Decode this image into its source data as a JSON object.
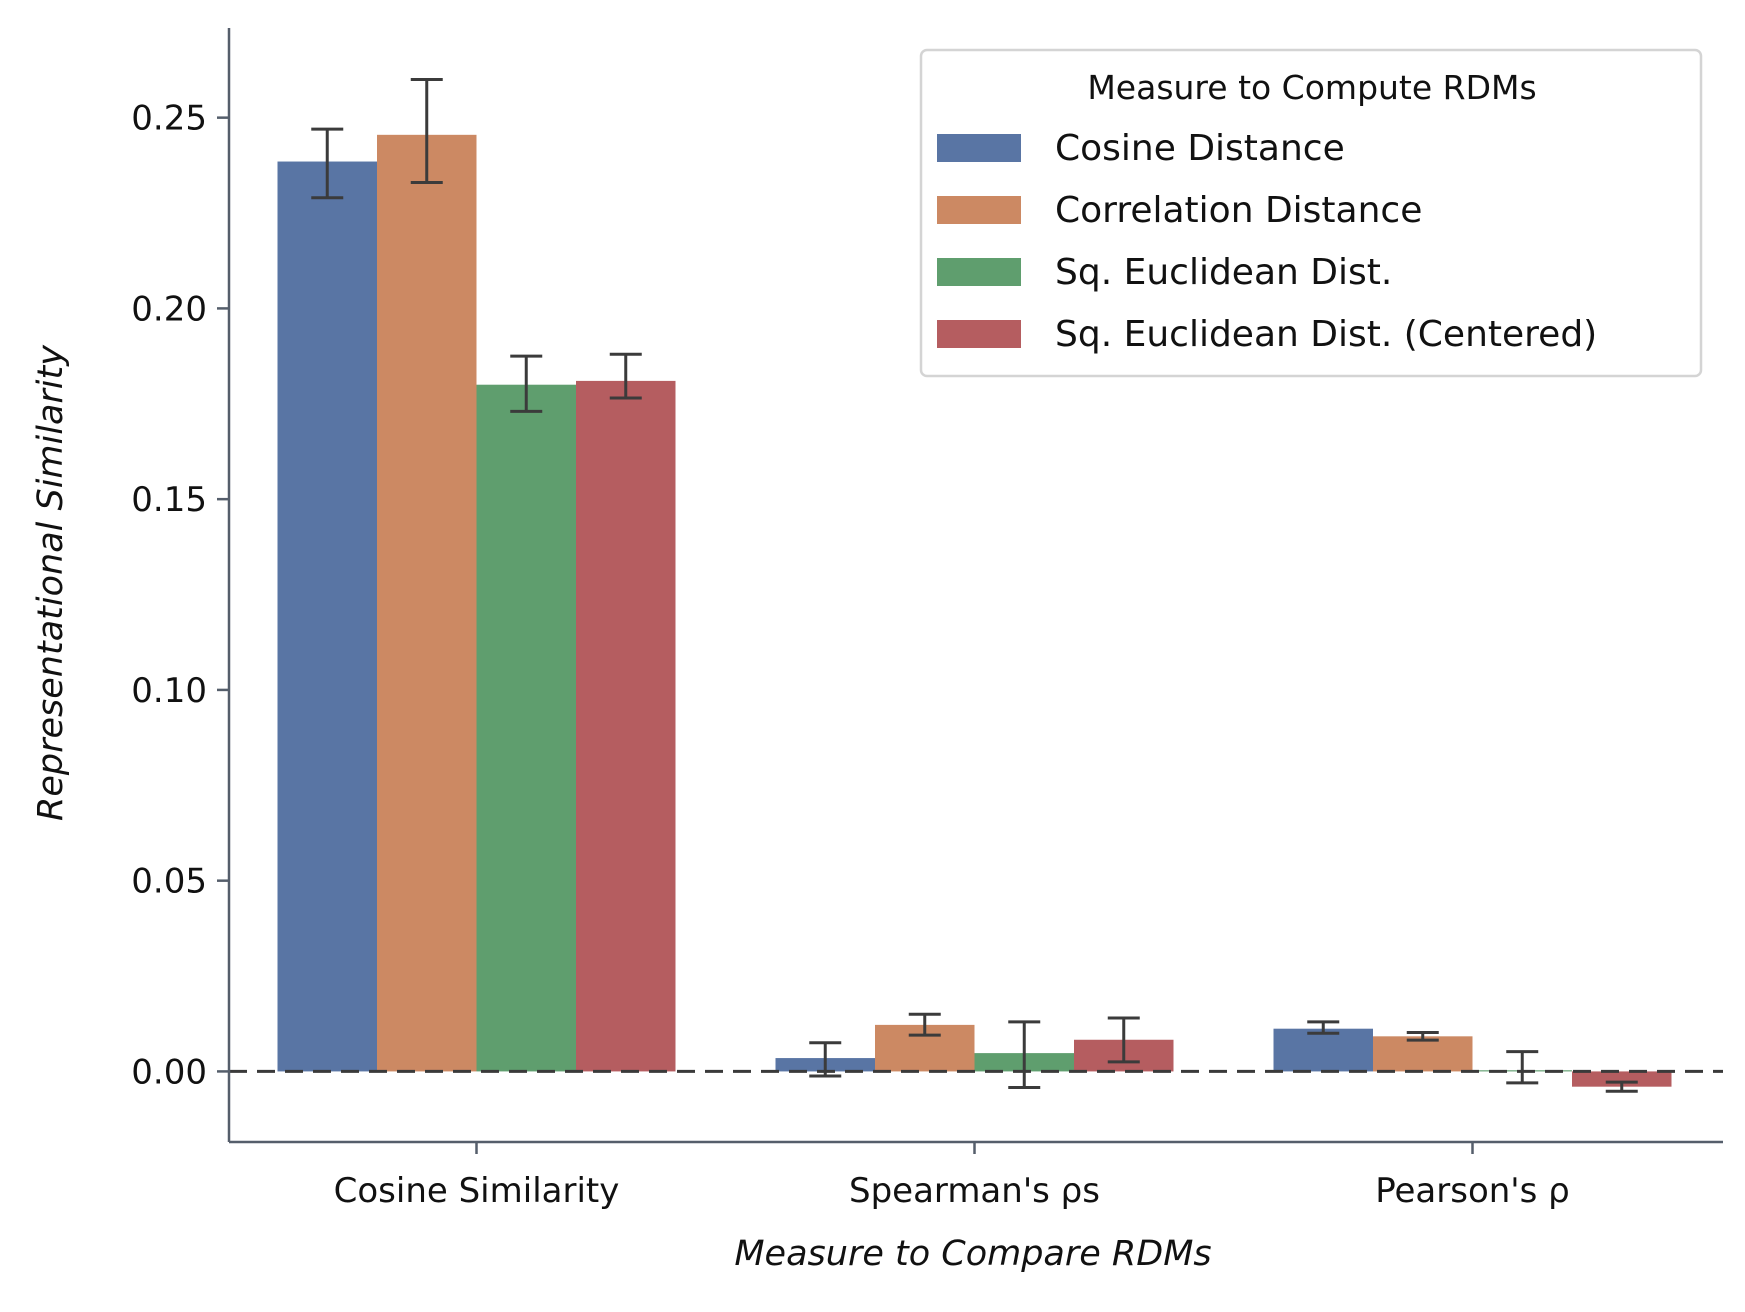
{
  "chart_data": {
    "type": "bar",
    "xlabel": "Measure to Compare RDMs",
    "ylabel": "Representational Similarity",
    "categories": [
      "Cosine Similarity",
      "Spearman's ρs",
      "Pearson's ρ"
    ],
    "ylim": [
      -0.0185,
      0.2735
    ],
    "yticks": [
      "0.00",
      "0.05",
      "0.10",
      "0.15",
      "0.20",
      "0.25"
    ],
    "ytick_values": [
      0.0,
      0.05,
      0.1,
      0.15,
      0.2,
      0.25
    ],
    "reference_line": 0.0,
    "grid": false,
    "legend": {
      "title": "Measure to Compute RDMs",
      "placement": "top-right"
    },
    "series": [
      {
        "name": "Cosine Distance",
        "color": "#5975a4",
        "values": [
          0.2385,
          0.0035,
          0.0112
        ],
        "err_low": [
          0.229,
          -0.0012,
          0.01
        ],
        "err_high": [
          0.247,
          0.0075,
          0.013
        ]
      },
      {
        "name": "Correlation Distance",
        "color": "#cc8963",
        "values": [
          0.2455,
          0.0122,
          0.0092
        ],
        "err_low": [
          0.233,
          0.0095,
          0.0082
        ],
        "err_high": [
          0.26,
          0.015,
          0.0102
        ]
      },
      {
        "name": "Sq. Euclidean Dist.",
        "color": "#5f9e6e",
        "values": [
          0.18,
          0.0048,
          0.0003
        ],
        "err_low": [
          0.173,
          -0.0042,
          -0.003
        ],
        "err_high": [
          0.1875,
          0.013,
          0.0052
        ]
      },
      {
        "name": "Sq. Euclidean Dist. (Centered)",
        "color": "#b55d60",
        "values": [
          0.181,
          0.0083,
          -0.004
        ],
        "err_low": [
          0.1765,
          0.0025,
          -0.0052
        ],
        "err_high": [
          0.188,
          0.014,
          -0.0028
        ]
      }
    ]
  }
}
